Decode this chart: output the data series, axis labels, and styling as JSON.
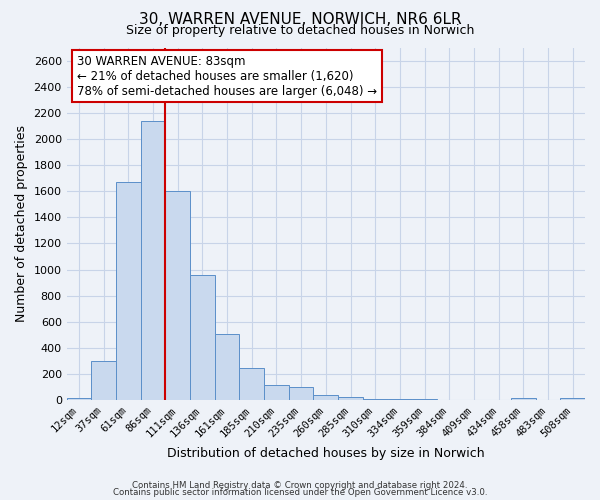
{
  "title": "30, WARREN AVENUE, NORWICH, NR6 6LR",
  "subtitle": "Size of property relative to detached houses in Norwich",
  "xlabel": "Distribution of detached houses by size in Norwich",
  "ylabel": "Number of detached properties",
  "bar_labels": [
    "12sqm",
    "37sqm",
    "61sqm",
    "86sqm",
    "111sqm",
    "136sqm",
    "161sqm",
    "185sqm",
    "210sqm",
    "235sqm",
    "260sqm",
    "285sqm",
    "310sqm",
    "334sqm",
    "359sqm",
    "384sqm",
    "409sqm",
    "434sqm",
    "458sqm",
    "483sqm",
    "508sqm"
  ],
  "bar_values": [
    20,
    300,
    1670,
    2140,
    1600,
    960,
    505,
    250,
    120,
    100,
    40,
    28,
    10,
    8,
    6,
    4,
    4,
    4,
    20,
    4,
    20
  ],
  "bar_color": "#c9d9ee",
  "bar_edge_color": "#5b8fc9",
  "vline_color": "#cc0000",
  "vline_x_index": 3,
  "ylim": [
    0,
    2700
  ],
  "yticks": [
    0,
    200,
    400,
    600,
    800,
    1000,
    1200,
    1400,
    1600,
    1800,
    2000,
    2200,
    2400,
    2600
  ],
  "annotation_title": "30 WARREN AVENUE: 83sqm",
  "annotation_line1": "← 21% of detached houses are smaller (1,620)",
  "annotation_line2": "78% of semi-detached houses are larger (6,048) →",
  "annotation_box_facecolor": "#ffffff",
  "annotation_box_edgecolor": "#cc0000",
  "footer_line1": "Contains HM Land Registry data © Crown copyright and database right 2024.",
  "footer_line2": "Contains public sector information licensed under the Open Government Licence v3.0.",
  "grid_color": "#c8d4e8",
  "fig_facecolor": "#eef2f8",
  "ax_facecolor": "#eef2f8"
}
